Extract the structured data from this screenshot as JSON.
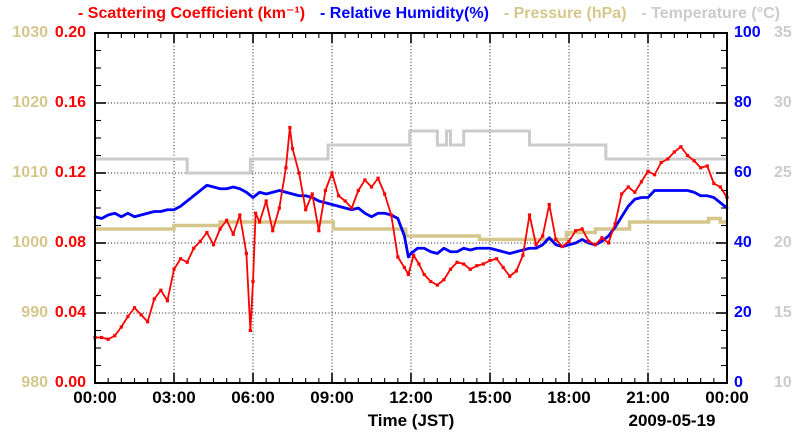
{
  "colors": {
    "scattering": "#ff0000",
    "humidity": "#0000ff",
    "pressure": "#d5c78c",
    "temperature": "#cbcbcb",
    "axis": "#000000",
    "background": "#ffffff"
  },
  "chart_data": {
    "type": "line",
    "legend": {
      "items": [
        {
          "id": "scattering",
          "label": "- Scattering Coefficient (km⁻¹)"
        },
        {
          "id": "humidity",
          "label": "- Relative Humidity(%)"
        },
        {
          "id": "pressure",
          "label": "- Pressure (hPa)"
        },
        {
          "id": "temperature",
          "label": "- Temperature (°C)"
        }
      ]
    },
    "x_axis": {
      "label": "Time (JST)",
      "date": "2009-05-19",
      "min": 0,
      "max": 24,
      "major_step_hours": 3,
      "minor_step_hours": 0.5,
      "grid": true,
      "ticks": [
        {
          "v": 0,
          "label": "00:00"
        },
        {
          "v": 3,
          "label": "03:00"
        },
        {
          "v": 6,
          "label": "06:00"
        },
        {
          "v": 9,
          "label": "09:00"
        },
        {
          "v": 12,
          "label": "12:00"
        },
        {
          "v": 15,
          "label": "15:00"
        },
        {
          "v": 18,
          "label": "18:00"
        },
        {
          "v": 21,
          "label": "21:00"
        },
        {
          "v": 24,
          "label": "00:00"
        }
      ]
    },
    "axes": [
      {
        "id": "scattering",
        "title": "Scattering Coefficient (km⁻¹)",
        "side": "left-inner",
        "min": 0.0,
        "max": 0.2,
        "color": "#ff0000",
        "ticks": [
          {
            "v": 0.2,
            "label": "0.20"
          },
          {
            "v": 0.16,
            "label": "0.16"
          },
          {
            "v": 0.12,
            "label": "0.12"
          },
          {
            "v": 0.08,
            "label": "0.08"
          },
          {
            "v": 0.04,
            "label": "0.04"
          },
          {
            "v": 0.0,
            "label": "0.00"
          }
        ]
      },
      {
        "id": "pressure",
        "title": "Pressure (hPa)",
        "side": "left-outer",
        "min": 980,
        "max": 1030,
        "color": "#d5c78c",
        "ticks": [
          {
            "v": 1030,
            "label": "1030"
          },
          {
            "v": 1020,
            "label": "1020"
          },
          {
            "v": 1010,
            "label": "1010"
          },
          {
            "v": 1000,
            "label": "1000"
          },
          {
            "v": 990,
            "label": "990"
          },
          {
            "v": 980,
            "label": "980"
          }
        ]
      },
      {
        "id": "humidity",
        "title": "Relative Humidity(%)",
        "side": "right-inner",
        "min": 0,
        "max": 100,
        "color": "#0000ff",
        "ticks": [
          {
            "v": 100,
            "label": "100"
          },
          {
            "v": 80,
            "label": "80"
          },
          {
            "v": 60,
            "label": "60"
          },
          {
            "v": 40,
            "label": "40"
          },
          {
            "v": 20,
            "label": "20"
          },
          {
            "v": 0,
            "label": "0"
          }
        ]
      },
      {
        "id": "temperature",
        "title": "Temperature (°C)",
        "side": "right-outer",
        "min": 10,
        "max": 35,
        "color": "#cbcbcb",
        "ticks": [
          {
            "v": 35,
            "label": "35"
          },
          {
            "v": 30,
            "label": "30"
          },
          {
            "v": 25,
            "label": "25"
          },
          {
            "v": 20,
            "label": "20"
          },
          {
            "v": 15,
            "label": "15"
          },
          {
            "v": 10,
            "label": "10"
          }
        ]
      }
    ],
    "series": [
      {
        "name": "Temperature",
        "axis": "temperature",
        "color": "#cbcbcb",
        "style": "step",
        "width": 3,
        "points": [
          [
            0,
            26
          ],
          [
            3.5,
            25
          ],
          [
            5.9,
            26
          ],
          [
            8.85,
            27
          ],
          [
            11.95,
            28
          ],
          [
            13.0,
            27
          ],
          [
            13.35,
            28
          ],
          [
            13.5,
            27
          ],
          [
            14.0,
            28
          ],
          [
            16.5,
            27
          ],
          [
            19.4,
            26
          ],
          [
            24,
            26
          ]
        ]
      },
      {
        "name": "Pressure",
        "axis": "pressure",
        "color": "#d5c78c",
        "style": "step",
        "width": 3.5,
        "points": [
          [
            0,
            1002
          ],
          [
            3.0,
            1002.5
          ],
          [
            4.75,
            1003
          ],
          [
            9.05,
            1002
          ],
          [
            11.8,
            1001
          ],
          [
            14.6,
            1000.5
          ],
          [
            17.9,
            1001.5
          ],
          [
            19.0,
            1002
          ],
          [
            20.3,
            1003
          ],
          [
            23.3,
            1003.5
          ],
          [
            23.75,
            1003
          ],
          [
            24,
            1003
          ]
        ]
      },
      {
        "name": "Relative Humidity",
        "axis": "humidity",
        "color": "#0000ff",
        "style": "line",
        "width": 2.8,
        "x": [
          0,
          0.25,
          0.5,
          0.75,
          1,
          1.25,
          1.5,
          1.75,
          2,
          2.25,
          2.5,
          2.75,
          3,
          3.25,
          3.5,
          3.75,
          4,
          4.25,
          4.5,
          4.75,
          5,
          5.25,
          5.5,
          5.75,
          6,
          6.25,
          6.5,
          6.75,
          7,
          7.25,
          7.5,
          7.75,
          8,
          8.25,
          8.5,
          8.75,
          9,
          9.25,
          9.5,
          9.75,
          10,
          10.25,
          10.5,
          10.75,
          11,
          11.25,
          11.5,
          11.75,
          11.9,
          12,
          12.25,
          12.5,
          12.75,
          13,
          13.25,
          13.5,
          13.75,
          14,
          14.25,
          14.5,
          14.75,
          15,
          15.25,
          15.5,
          15.75,
          16,
          16.25,
          16.5,
          16.75,
          17,
          17.25,
          17.5,
          17.75,
          18,
          18.25,
          18.5,
          18.75,
          19,
          19.25,
          19.5,
          19.75,
          20,
          20.25,
          20.5,
          20.75,
          21,
          21.25,
          21.5,
          21.75,
          22,
          22.25,
          22.5,
          22.75,
          23,
          23.25,
          23.5,
          23.75,
          24
        ],
        "y": [
          47.5,
          47,
          48,
          48.5,
          47.5,
          48.5,
          47.5,
          48,
          48.5,
          49,
          49,
          49.5,
          49.5,
          50.5,
          52,
          53.5,
          55,
          56.5,
          56,
          55.5,
          55.5,
          56,
          55.5,
          54.5,
          53,
          54.5,
          54,
          54.5,
          55,
          54.5,
          54,
          53.5,
          53.5,
          53,
          52,
          51.5,
          51,
          50.5,
          50,
          49.5,
          50,
          48.5,
          47.5,
          48.5,
          48.5,
          48,
          47,
          42,
          36,
          37,
          38.5,
          38.5,
          37.5,
          37,
          38.5,
          37.5,
          37.5,
          38.5,
          38,
          38.5,
          38.5,
          38.5,
          38,
          37.5,
          37,
          37.5,
          38,
          38.5,
          38.5,
          39.5,
          41.5,
          39.5,
          39,
          39.5,
          40,
          41,
          40,
          39.5,
          40.5,
          42,
          44.5,
          47.5,
          50.5,
          52.5,
          53,
          53,
          55,
          55,
          55,
          55,
          55,
          55,
          54.5,
          53.5,
          53.5,
          53,
          51.5,
          50
        ]
      },
      {
        "name": "Scattering Coefficient",
        "axis": "scattering",
        "color": "#ff0000",
        "style": "line+markers",
        "width": 1.8,
        "x": [
          0,
          0.25,
          0.5,
          0.75,
          1,
          1.25,
          1.5,
          1.75,
          2,
          2.25,
          2.5,
          2.75,
          3,
          3.25,
          3.5,
          3.75,
          4,
          4.25,
          4.5,
          4.75,
          5,
          5.25,
          5.5,
          5.75,
          5.9,
          6,
          6.1,
          6.25,
          6.5,
          6.75,
          7,
          7.25,
          7.4,
          7.5,
          7.75,
          8,
          8.25,
          8.5,
          8.75,
          9,
          9.25,
          9.5,
          9.75,
          10,
          10.25,
          10.5,
          10.75,
          11,
          11.25,
          11.5,
          11.75,
          11.9,
          12.1,
          12.3,
          12.5,
          12.75,
          13,
          13.25,
          13.5,
          13.75,
          14,
          14.25,
          14.5,
          14.75,
          15,
          15.25,
          15.5,
          15.75,
          16,
          16.25,
          16.5,
          16.75,
          17,
          17.25,
          17.5,
          17.75,
          18,
          18.25,
          18.5,
          18.75,
          19,
          19.25,
          19.5,
          19.75,
          20,
          20.25,
          20.5,
          20.75,
          21,
          21.25,
          21.5,
          21.75,
          22,
          22.25,
          22.5,
          22.75,
          23,
          23.25,
          23.5,
          23.75,
          24
        ],
        "y": [
          0.026,
          0.026,
          0.025,
          0.027,
          0.032,
          0.038,
          0.043,
          0.039,
          0.035,
          0.048,
          0.053,
          0.047,
          0.065,
          0.071,
          0.069,
          0.077,
          0.081,
          0.086,
          0.079,
          0.088,
          0.093,
          0.085,
          0.096,
          0.074,
          0.03,
          0.058,
          0.097,
          0.092,
          0.104,
          0.087,
          0.1,
          0.123,
          0.146,
          0.134,
          0.12,
          0.099,
          0.108,
          0.087,
          0.11,
          0.12,
          0.107,
          0.104,
          0.1,
          0.11,
          0.116,
          0.112,
          0.117,
          0.108,
          0.096,
          0.072,
          0.066,
          0.062,
          0.073,
          0.068,
          0.062,
          0.058,
          0.056,
          0.059,
          0.065,
          0.069,
          0.068,
          0.065,
          0.067,
          0.068,
          0.07,
          0.071,
          0.066,
          0.061,
          0.064,
          0.073,
          0.096,
          0.079,
          0.084,
          0.102,
          0.082,
          0.078,
          0.081,
          0.087,
          0.088,
          0.081,
          0.079,
          0.083,
          0.08,
          0.091,
          0.108,
          0.112,
          0.109,
          0.115,
          0.121,
          0.119,
          0.126,
          0.128,
          0.132,
          0.135,
          0.13,
          0.127,
          0.123,
          0.124,
          0.114,
          0.112,
          0.106
        ]
      }
    ]
  }
}
